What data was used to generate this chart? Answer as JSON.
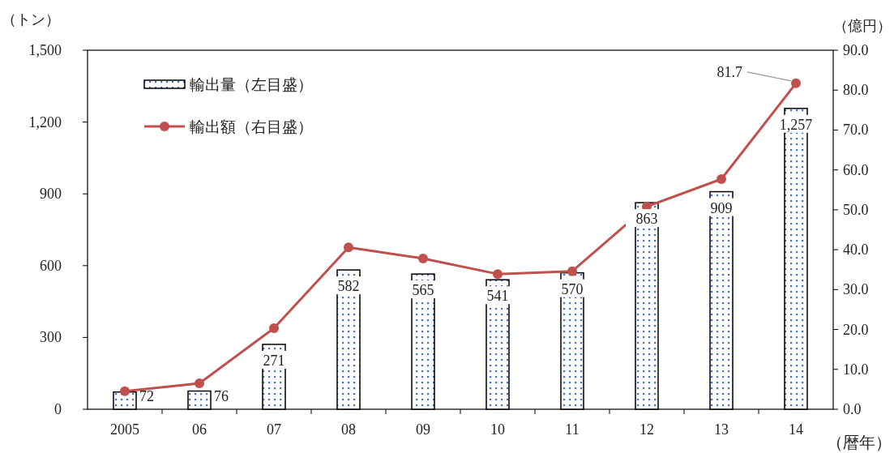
{
  "chart_data": {
    "type": "bar",
    "xlabel": "（暦年）",
    "ylabel": "（トン）",
    "y2label": "（億円）",
    "categories": [
      "2005",
      "06",
      "07",
      "08",
      "09",
      "10",
      "11",
      "12",
      "13",
      "14"
    ],
    "series": [
      {
        "name": "輸出量（左目盛）",
        "color": "#000000",
        "values": [
          72,
          76,
          271,
          582,
          565,
          541,
          570,
          863,
          909,
          1257
        ],
        "value_labels": [
          "72",
          "76",
          "271",
          "582",
          "565",
          "541",
          "570",
          "863",
          "909",
          "1,257"
        ]
      },
      {
        "name": "輸出額（右目盛）",
        "type": "line",
        "axis": "y2",
        "color": "#c0504d",
        "marker": "circle",
        "values": [
          4.5,
          6.5,
          20.3,
          40.6,
          37.8,
          33.9,
          34.6,
          50.8,
          57.7,
          81.7
        ],
        "value_labels": [
          null,
          null,
          null,
          null,
          null,
          null,
          null,
          null,
          null,
          "81.7"
        ]
      }
    ],
    "ylim": [
      0,
      1500
    ],
    "yticks": [
      0,
      300,
      600,
      900,
      {
        "value": 1200,
        "label": "1,200"
      },
      {
        "value": 1500,
        "label": "1,500"
      }
    ],
    "y2lim": [
      0,
      90
    ],
    "y2ticks": [
      {
        "value": 0,
        "label": "0.0"
      },
      {
        "value": 10,
        "label": "10.0"
      },
      {
        "value": 20,
        "label": "20.0"
      },
      {
        "value": 30,
        "label": "30.0"
      },
      {
        "value": 40,
        "label": "40.0"
      },
      {
        "value": 50,
        "label": "50.0"
      },
      {
        "value": 60,
        "label": "60.0"
      },
      {
        "value": 70,
        "label": "70.0"
      },
      {
        "value": 80,
        "label": "80.0"
      },
      {
        "value": 90,
        "label": "90.0"
      }
    ],
    "legend": "top left"
  }
}
